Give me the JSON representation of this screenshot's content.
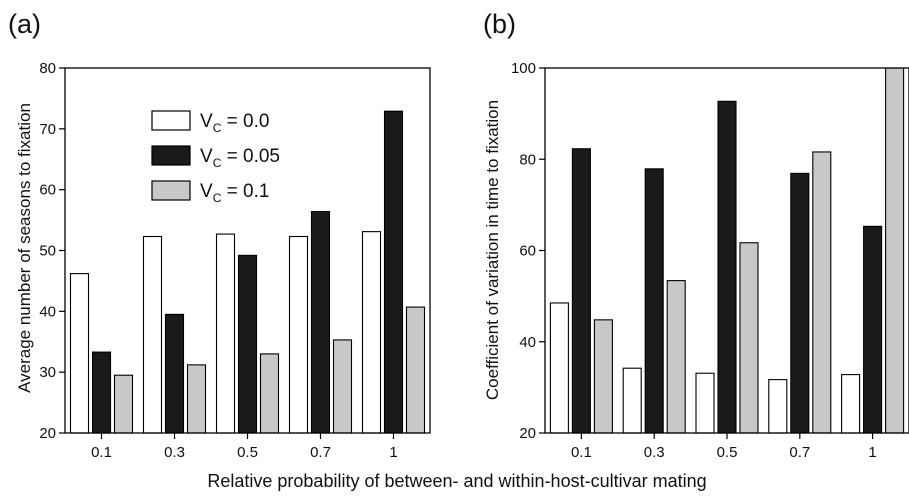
{
  "shared_xlabel": "Relative probability of between- and within-host-cultivar mating",
  "legend": {
    "entries": [
      {
        "prefix": "V",
        "sub": "C",
        "suffix": " = 0.0",
        "color": "#ffffff"
      },
      {
        "prefix": "V",
        "sub": "C",
        "suffix": " = 0.05",
        "color": "#1a1a1a"
      },
      {
        "prefix": "V",
        "sub": "C",
        "suffix": " = 0.1",
        "color": "#c8c8c8"
      }
    ]
  },
  "series_colors": [
    "#ffffff",
    "#1a1a1a",
    "#c8c8c8"
  ],
  "chart_data": [
    {
      "type": "bar",
      "panel_label": "(a)",
      "categories": [
        "0.1",
        "0.3",
        "0.5",
        "0.7",
        "1"
      ],
      "ylabel": "Average number of seasons to fixation",
      "ylim": [
        20,
        80
      ],
      "yticks": [
        "20",
        "30",
        "40",
        "50",
        "60",
        "70",
        "80"
      ],
      "legend_position": "top-left",
      "series": [
        {
          "name": "VC = 0.0",
          "values": [
            46.2,
            52.3,
            52.7,
            52.3,
            53.1
          ]
        },
        {
          "name": "VC = 0.05",
          "values": [
            33.3,
            39.5,
            49.2,
            56.4,
            72.9
          ]
        },
        {
          "name": "VC = 0.1",
          "values": [
            29.5,
            31.2,
            33.0,
            35.3,
            40.7
          ]
        }
      ]
    },
    {
      "type": "bar",
      "panel_label": "(b)",
      "categories": [
        "0.1",
        "0.3",
        "0.5",
        "0.7",
        "1"
      ],
      "ylabel": "Coefficient of variation in time to fixation",
      "ylim": [
        20,
        100
      ],
      "yticks": [
        "20",
        "40",
        "60",
        "80",
        "100"
      ],
      "series": [
        {
          "name": "VC = 0.0",
          "values": [
            48.5,
            34.2,
            33.1,
            31.7,
            32.8
          ]
        },
        {
          "name": "VC = 0.05",
          "values": [
            82.3,
            77.9,
            92.7,
            76.9,
            65.3
          ]
        },
        {
          "name": "VC = 0.1",
          "values": [
            44.8,
            53.4,
            61.7,
            81.6,
            100
          ]
        }
      ]
    }
  ]
}
